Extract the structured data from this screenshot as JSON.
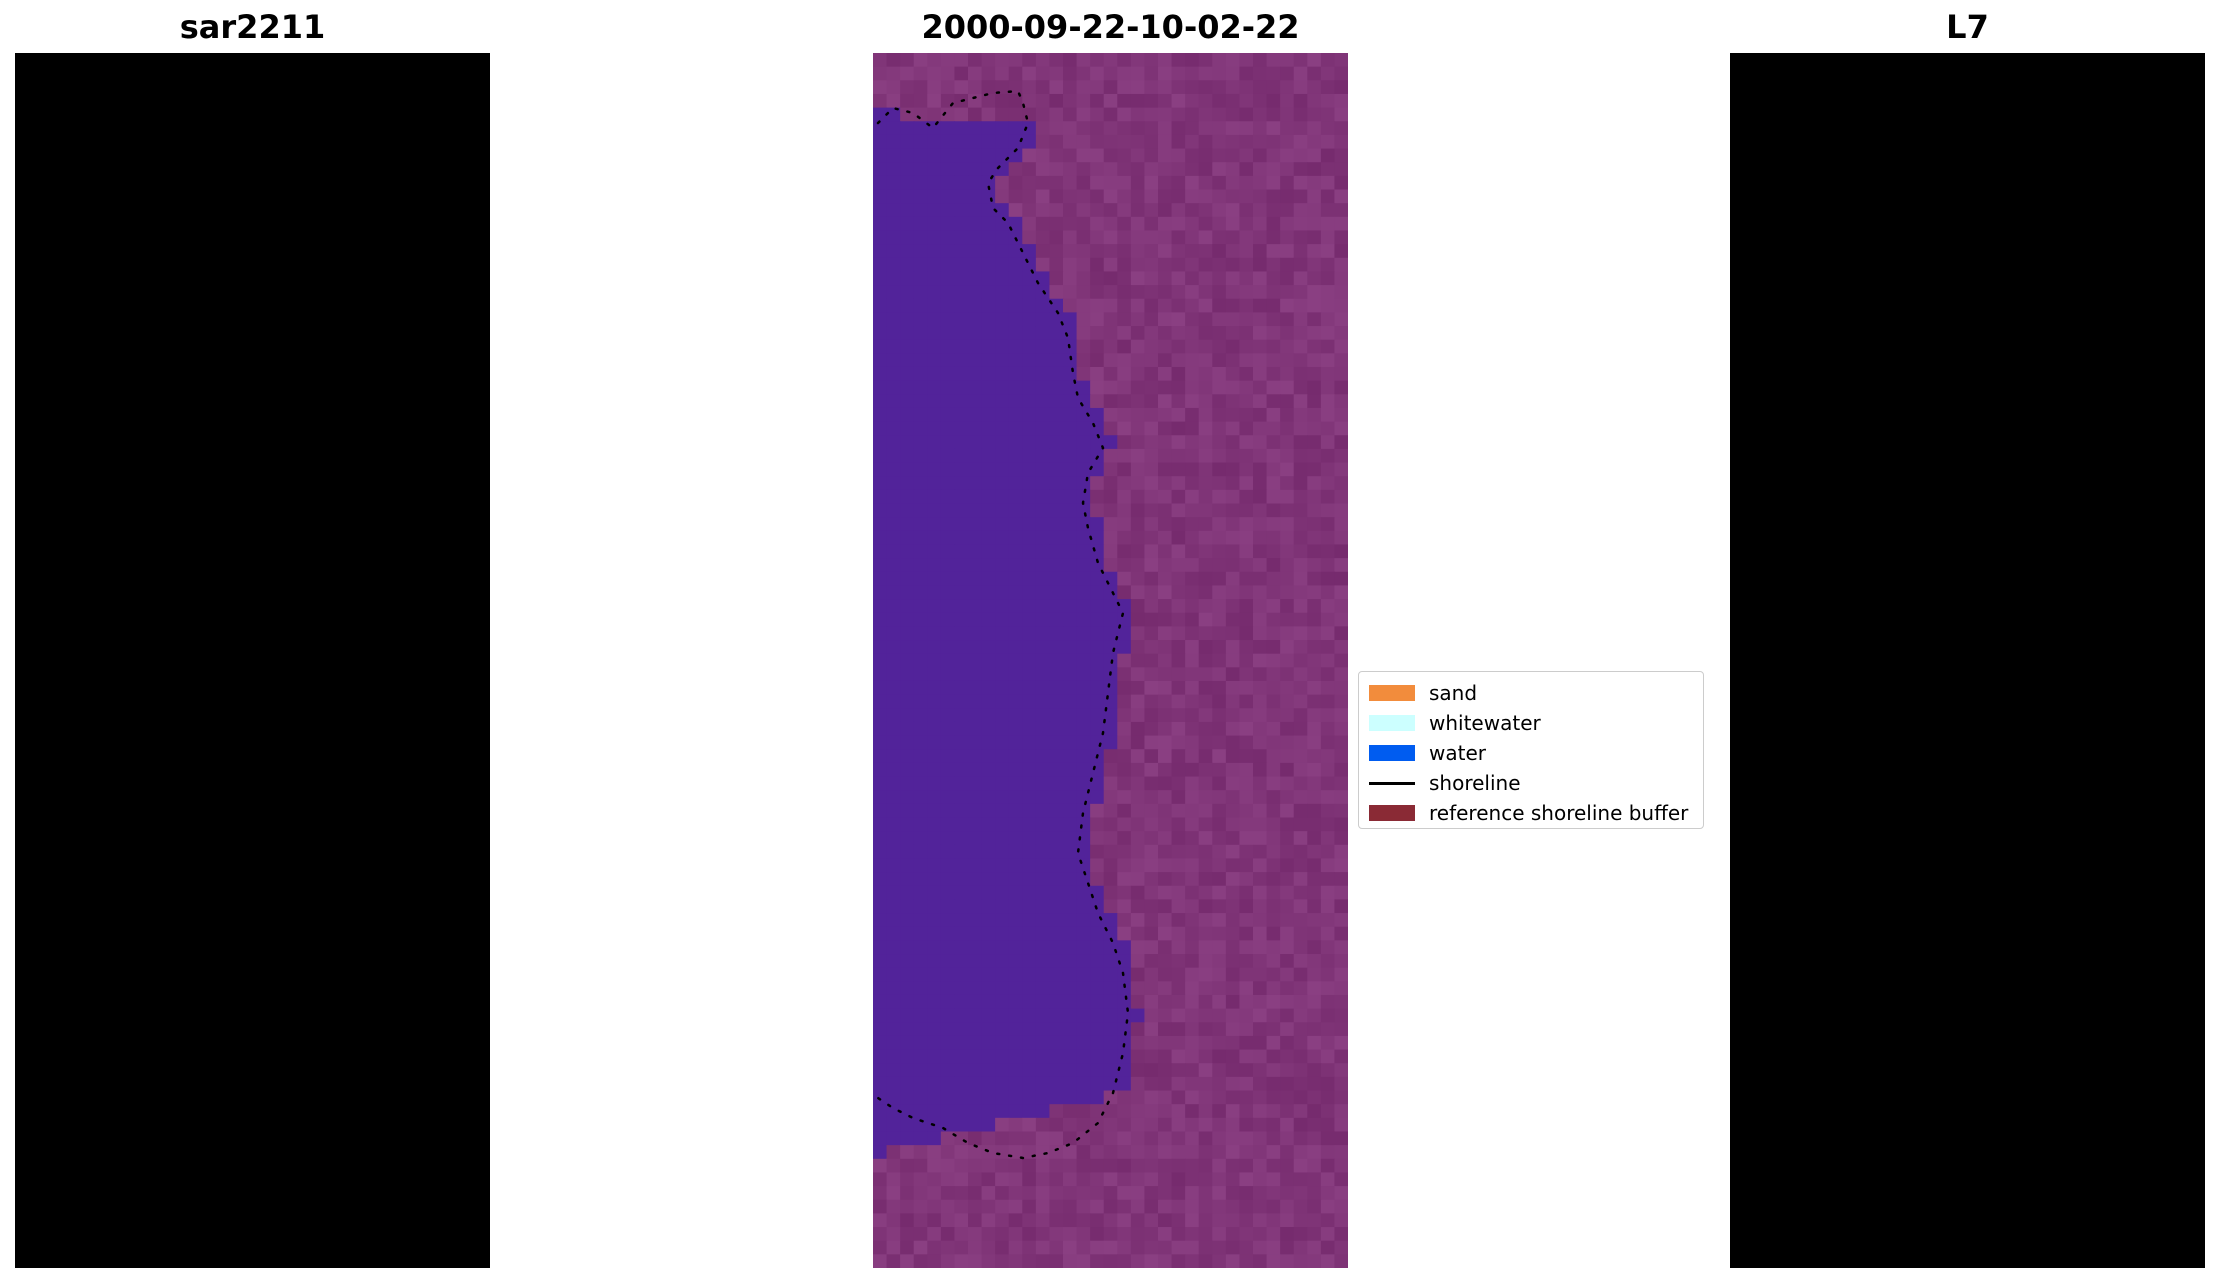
{
  "panels": [
    {
      "title": "sar2211"
    },
    {
      "title": "2000-09-22-10-02-22"
    },
    {
      "title": "L7"
    }
  ],
  "legend": {
    "placement": "center",
    "items": [
      {
        "label": "sand",
        "color": "#f28c3c",
        "kind": "patch"
      },
      {
        "label": "whitewater",
        "color": "#ccffff",
        "kind": "patch"
      },
      {
        "label": "water",
        "color": "#005cf0",
        "kind": "patch"
      },
      {
        "label": "shoreline",
        "color": "#000000",
        "kind": "line"
      },
      {
        "label": "reference shoreline buffer",
        "color": "#8a2a35",
        "kind": "patch"
      }
    ]
  },
  "colors": {
    "rgb_water": "#3d6fb8",
    "rgb_land": "#9fb4cc",
    "class_water": "#52239a",
    "class_land": "#8a3f82",
    "ndwi_water": "#6a1aa3",
    "ndwi_land": "#c0103f"
  }
}
